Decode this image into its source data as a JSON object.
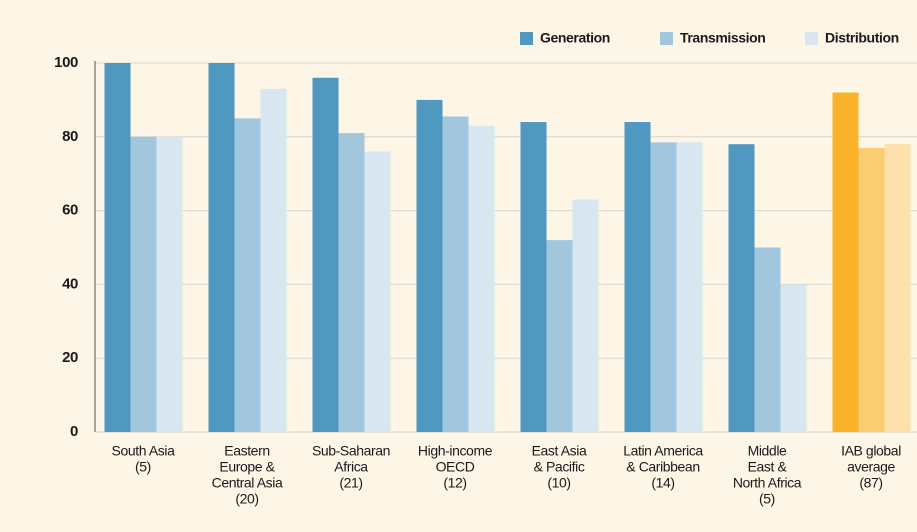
{
  "chart_data": {
    "type": "bar",
    "categories": [
      [
        "South Asia",
        "(5)"
      ],
      [
        "Eastern",
        "Europe &",
        "Central Asia",
        "(20)"
      ],
      [
        "Sub-Saharan",
        "Africa",
        "(21)"
      ],
      [
        "High-income",
        "OECD",
        "(12)"
      ],
      [
        "East Asia",
        "& Pacific",
        "(10)"
      ],
      [
        "Latin America",
        "& Caribbean",
        "(14)"
      ],
      [
        "Middle",
        "East &",
        "North Africa",
        "(5)"
      ],
      [
        "IAB global",
        "average",
        "(87)"
      ]
    ],
    "series": [
      {
        "name": "Generation",
        "color": "#4f98c0",
        "colors": [
          "#4f98c0",
          "#4f98c0",
          "#4f98c0",
          "#4f98c0",
          "#4f98c0",
          "#4f98c0",
          "#4f98c0",
          "#f9b42c"
        ],
        "values": [
          100,
          100,
          96,
          90,
          84,
          84,
          78,
          92
        ]
      },
      {
        "name": "Transmission",
        "color": "#a2c6dd",
        "colors": [
          "#a2c6dd",
          "#a2c6dd",
          "#a2c6dd",
          "#a2c6dd",
          "#a2c6dd",
          "#a2c6dd",
          "#a2c6dd",
          "#fbcd72"
        ],
        "values": [
          80,
          85,
          81,
          85.5,
          52,
          78.5,
          50,
          77
        ]
      },
      {
        "name": "Distribution",
        "color": "#d7e6f0",
        "colors": [
          "#d7e6f0",
          "#d7e6f0",
          "#d7e6f0",
          "#d7e6f0",
          "#d7e6f0",
          "#d7e6f0",
          "#d7e6f0",
          "#fde0aa"
        ],
        "values": [
          80,
          93,
          76,
          83,
          63,
          78.5,
          40,
          78
        ]
      }
    ],
    "ylim": [
      0,
      100
    ],
    "yticks": [
      0,
      20,
      40,
      60,
      80,
      100
    ],
    "grid": true,
    "legend": "top-right"
  }
}
